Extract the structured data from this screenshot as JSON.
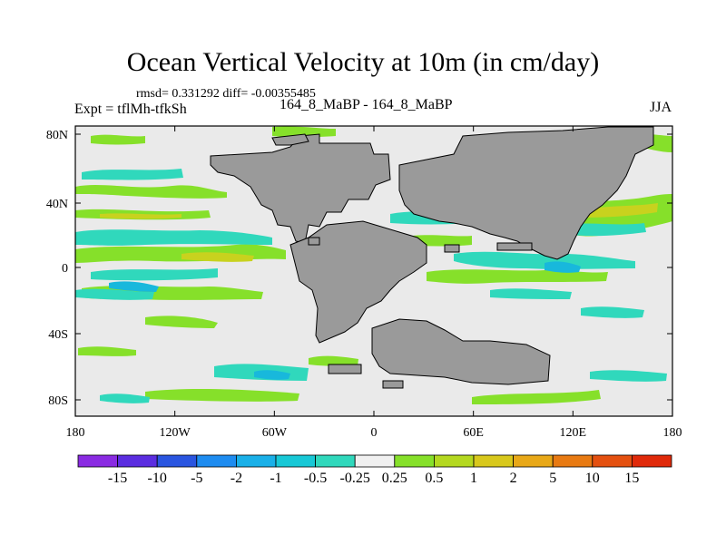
{
  "title": "Ocean Vertical Velocity at 10m (in cm/day)",
  "stats_line": "rmsd= 0.331292 diff= -0.00355485",
  "experiment_line": "Expt = tflMh-tfkSh",
  "cases_line": "164_8_MaBP - 164_8_MaBP",
  "season": "JJA",
  "lat_labels": [
    "80N",
    "40N",
    "0",
    "40S",
    "80S"
  ],
  "lon_labels": [
    "180",
    "120W",
    "60W",
    "0",
    "60E",
    "120E",
    "180"
  ],
  "colorbar": {
    "colors": [
      "#8a2be2",
      "#5b2de0",
      "#2a55e0",
      "#1e8cf0",
      "#1ab0e8",
      "#18c8d6",
      "#30d8bc",
      "#f0f0f0",
      "#86e02a",
      "#b4d820",
      "#d8c81c",
      "#e8a818",
      "#e87a12",
      "#e45010",
      "#e02a0a"
    ],
    "labels": [
      "-15",
      "-10",
      "-5",
      "-2",
      "-1",
      "-0.5",
      "-0.25",
      "0.25",
      "0.5",
      "1",
      "2",
      "5",
      "10",
      "15"
    ]
  },
  "colors": {
    "land": "#9a9a9a",
    "background": "#eaeaea",
    "positive_weak": "#86e02a",
    "positive_mid": "#b4d820",
    "negative_weak": "#30d8bc",
    "negative_mid": "#18c8d6"
  }
}
